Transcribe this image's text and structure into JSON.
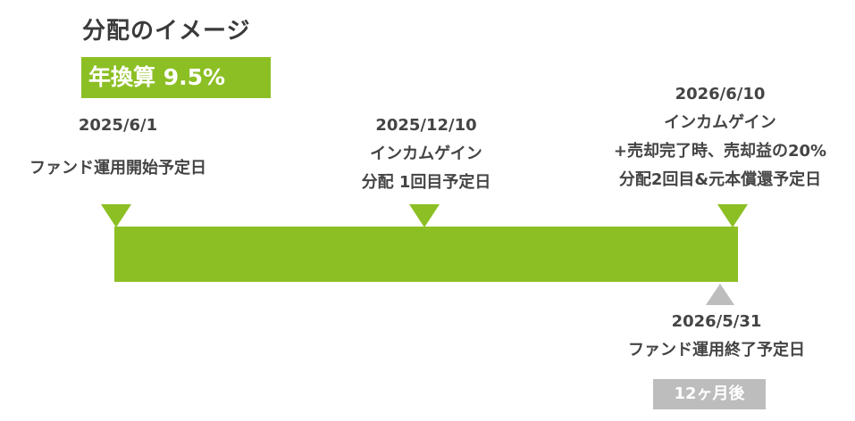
{
  "title": "分配のイメージ",
  "rate_badge": "年換算 9.5%",
  "milestones": [
    {
      "date": "2025/6/1",
      "label1": "ファンド運用開始予定日"
    },
    {
      "date": "2025/12/10",
      "label1": "インカムゲイン",
      "label2": "分配 1回目予定日"
    },
    {
      "date": "2026/6/10",
      "label1": "インカムゲイン",
      "label2": "+売却完了時、売却益の20%",
      "label3": "分配2回目&元本償還予定日"
    }
  ],
  "end": {
    "date": "2026/5/31",
    "label1": "ファンド運用終了予定日"
  },
  "duration_badge": "12ヶ月後",
  "colors": {
    "accent_green": "#8cbf24",
    "badge_gray": "#bdbdbd",
    "text": "#444444"
  }
}
